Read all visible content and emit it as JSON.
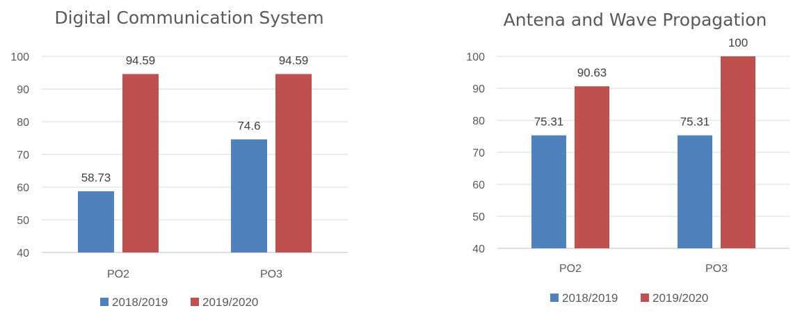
{
  "chart_data": [
    {
      "type": "bar",
      "title": "Digital Communication System",
      "categories": [
        "PO2",
        "PO3"
      ],
      "series": [
        {
          "name": "2018/2019",
          "values": [
            58.73,
            74.6
          ],
          "color": "#4f81bd"
        },
        {
          "name": "2019/2020",
          "values": [
            94.59,
            94.59
          ],
          "color": "#c0504d"
        }
      ],
      "ylim": [
        40,
        100
      ],
      "yticks": [
        40,
        50,
        60,
        70,
        80,
        90,
        100
      ],
      "grid": true,
      "legend": "bottom"
    },
    {
      "type": "bar",
      "title": "Antena and Wave Propagation",
      "categories": [
        "PO2",
        "PO3"
      ],
      "series": [
        {
          "name": "2018/2019",
          "values": [
            75.31,
            75.31
          ],
          "color": "#4f81bd"
        },
        {
          "name": "2019/2020",
          "values": [
            90.63,
            100
          ],
          "color": "#c0504d"
        }
      ],
      "ylim": [
        40,
        100
      ],
      "yticks": [
        40,
        50,
        60,
        70,
        80,
        90,
        100
      ],
      "grid": true,
      "legend": "bottom"
    }
  ]
}
